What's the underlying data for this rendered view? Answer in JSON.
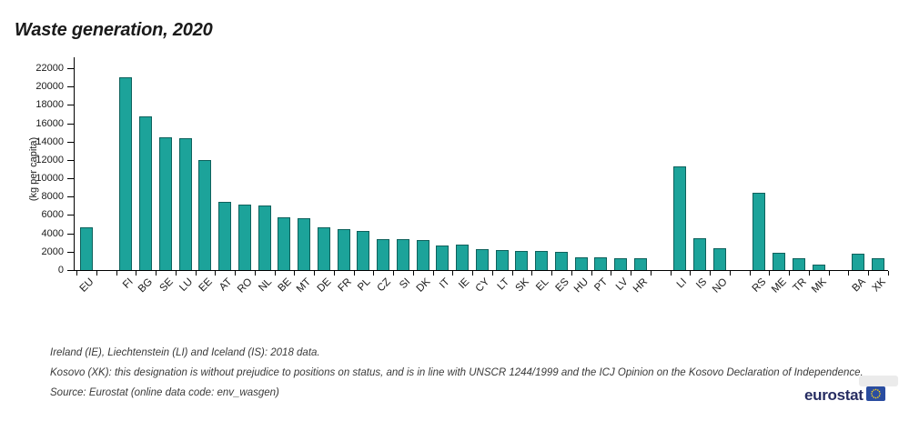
{
  "header": {
    "title": "Waste generation, 2020"
  },
  "chart_data": {
    "type": "bar",
    "title": "Waste generation, 2020",
    "xlabel": "",
    "ylabel": "(kg per capita)",
    "ylim": [
      0,
      22000
    ],
    "ytick_step": 2000,
    "grid": false,
    "legend_position": "none",
    "bar_color": "#1ca39a",
    "bar_border_color": "#0e615c",
    "slots": [
      {
        "label": "EU",
        "value": 4650
      },
      {
        "label": null,
        "value": null
      },
      {
        "label": "FI",
        "value": 21000
      },
      {
        "label": "BG",
        "value": 16700
      },
      {
        "label": "SE",
        "value": 14500
      },
      {
        "label": "LU",
        "value": 14400
      },
      {
        "label": "EE",
        "value": 12000
      },
      {
        "label": "AT",
        "value": 7400
      },
      {
        "label": "RO",
        "value": 7100
      },
      {
        "label": "NL",
        "value": 7050
      },
      {
        "label": "BE",
        "value": 5700
      },
      {
        "label": "MT",
        "value": 5650
      },
      {
        "label": "DE",
        "value": 4700
      },
      {
        "label": "FR",
        "value": 4500
      },
      {
        "label": "PL",
        "value": 4300
      },
      {
        "label": "CZ",
        "value": 3400
      },
      {
        "label": "SI",
        "value": 3380
      },
      {
        "label": "DK",
        "value": 3250
      },
      {
        "label": "IT",
        "value": 2700
      },
      {
        "label": "IE",
        "value": 2800
      },
      {
        "label": "CY",
        "value": 2300
      },
      {
        "label": "LT",
        "value": 2150
      },
      {
        "label": "SK",
        "value": 2100
      },
      {
        "label": "EL",
        "value": 2050
      },
      {
        "label": "ES",
        "value": 1950
      },
      {
        "label": "HU",
        "value": 1430
      },
      {
        "label": "PT",
        "value": 1390
      },
      {
        "label": "LV",
        "value": 1330
      },
      {
        "label": "HR",
        "value": 1300
      },
      {
        "label": null,
        "value": null
      },
      {
        "label": "LI",
        "value": 11300
      },
      {
        "label": "IS",
        "value": 3450
      },
      {
        "label": "NO",
        "value": 2400
      },
      {
        "label": null,
        "value": null
      },
      {
        "label": "RS",
        "value": 8400
      },
      {
        "label": "ME",
        "value": 1900
      },
      {
        "label": "TR",
        "value": 1250
      },
      {
        "label": "MK",
        "value": 550
      },
      {
        "label": null,
        "value": null
      },
      {
        "label": "BA",
        "value": 1800
      },
      {
        "label": "XK",
        "value": 1250
      }
    ]
  },
  "notes": {
    "line1": "Ireland (IE), Liechtenstein (LI) and Iceland (IS): 2018 data.",
    "line2": "Kosovo (XK): this designation is without prejudice to positions on status, and is in line with UNSCR 1244/1999 and the ICJ Opinion on the Kosovo Declaration of Independence.",
    "line3": "Source: Eurostat (online data code: env_wasgen)"
  },
  "logo": {
    "text": "eurostat",
    "flag_color": "#2a4da0",
    "star_color": "#ffd617"
  }
}
